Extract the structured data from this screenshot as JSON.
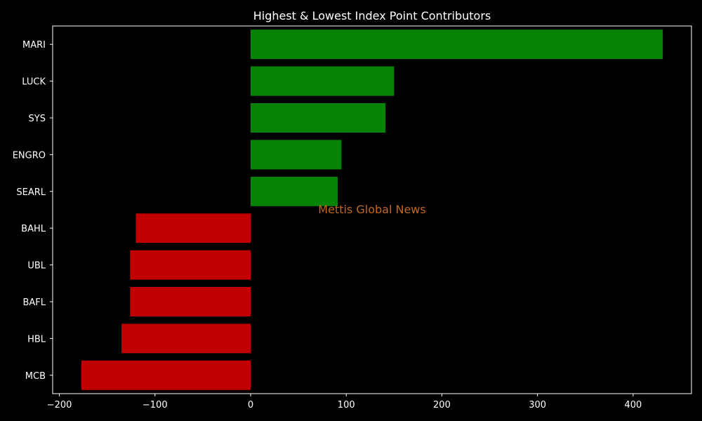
{
  "chart_data": {
    "type": "bar",
    "orientation": "horizontal",
    "title": "Highest & Lowest Index Point Contributors",
    "xlabel": "",
    "ylabel": "",
    "categories": [
      "MARI",
      "LUCK",
      "SYS",
      "ENGRO",
      "SEARL",
      "BAHL",
      "UBL",
      "BAFL",
      "HBL",
      "MCB"
    ],
    "values": [
      431,
      150,
      141,
      95,
      91,
      -120,
      -126,
      -126,
      -135,
      -177
    ],
    "xlim": [
      -207,
      461
    ],
    "xticks": [
      -200,
      -100,
      0,
      100,
      200,
      300,
      400
    ],
    "xtick_labels": [
      "−200",
      "−100",
      "0",
      "100",
      "200",
      "300",
      "400"
    ],
    "grid": false,
    "colors": {
      "positive": "#078407",
      "negative": "#c00000",
      "background": "#000000",
      "text": "#ffffff",
      "axes": "#ffffff"
    }
  },
  "watermark": {
    "text": "Mettis Global News",
    "color": "#c0691c"
  }
}
